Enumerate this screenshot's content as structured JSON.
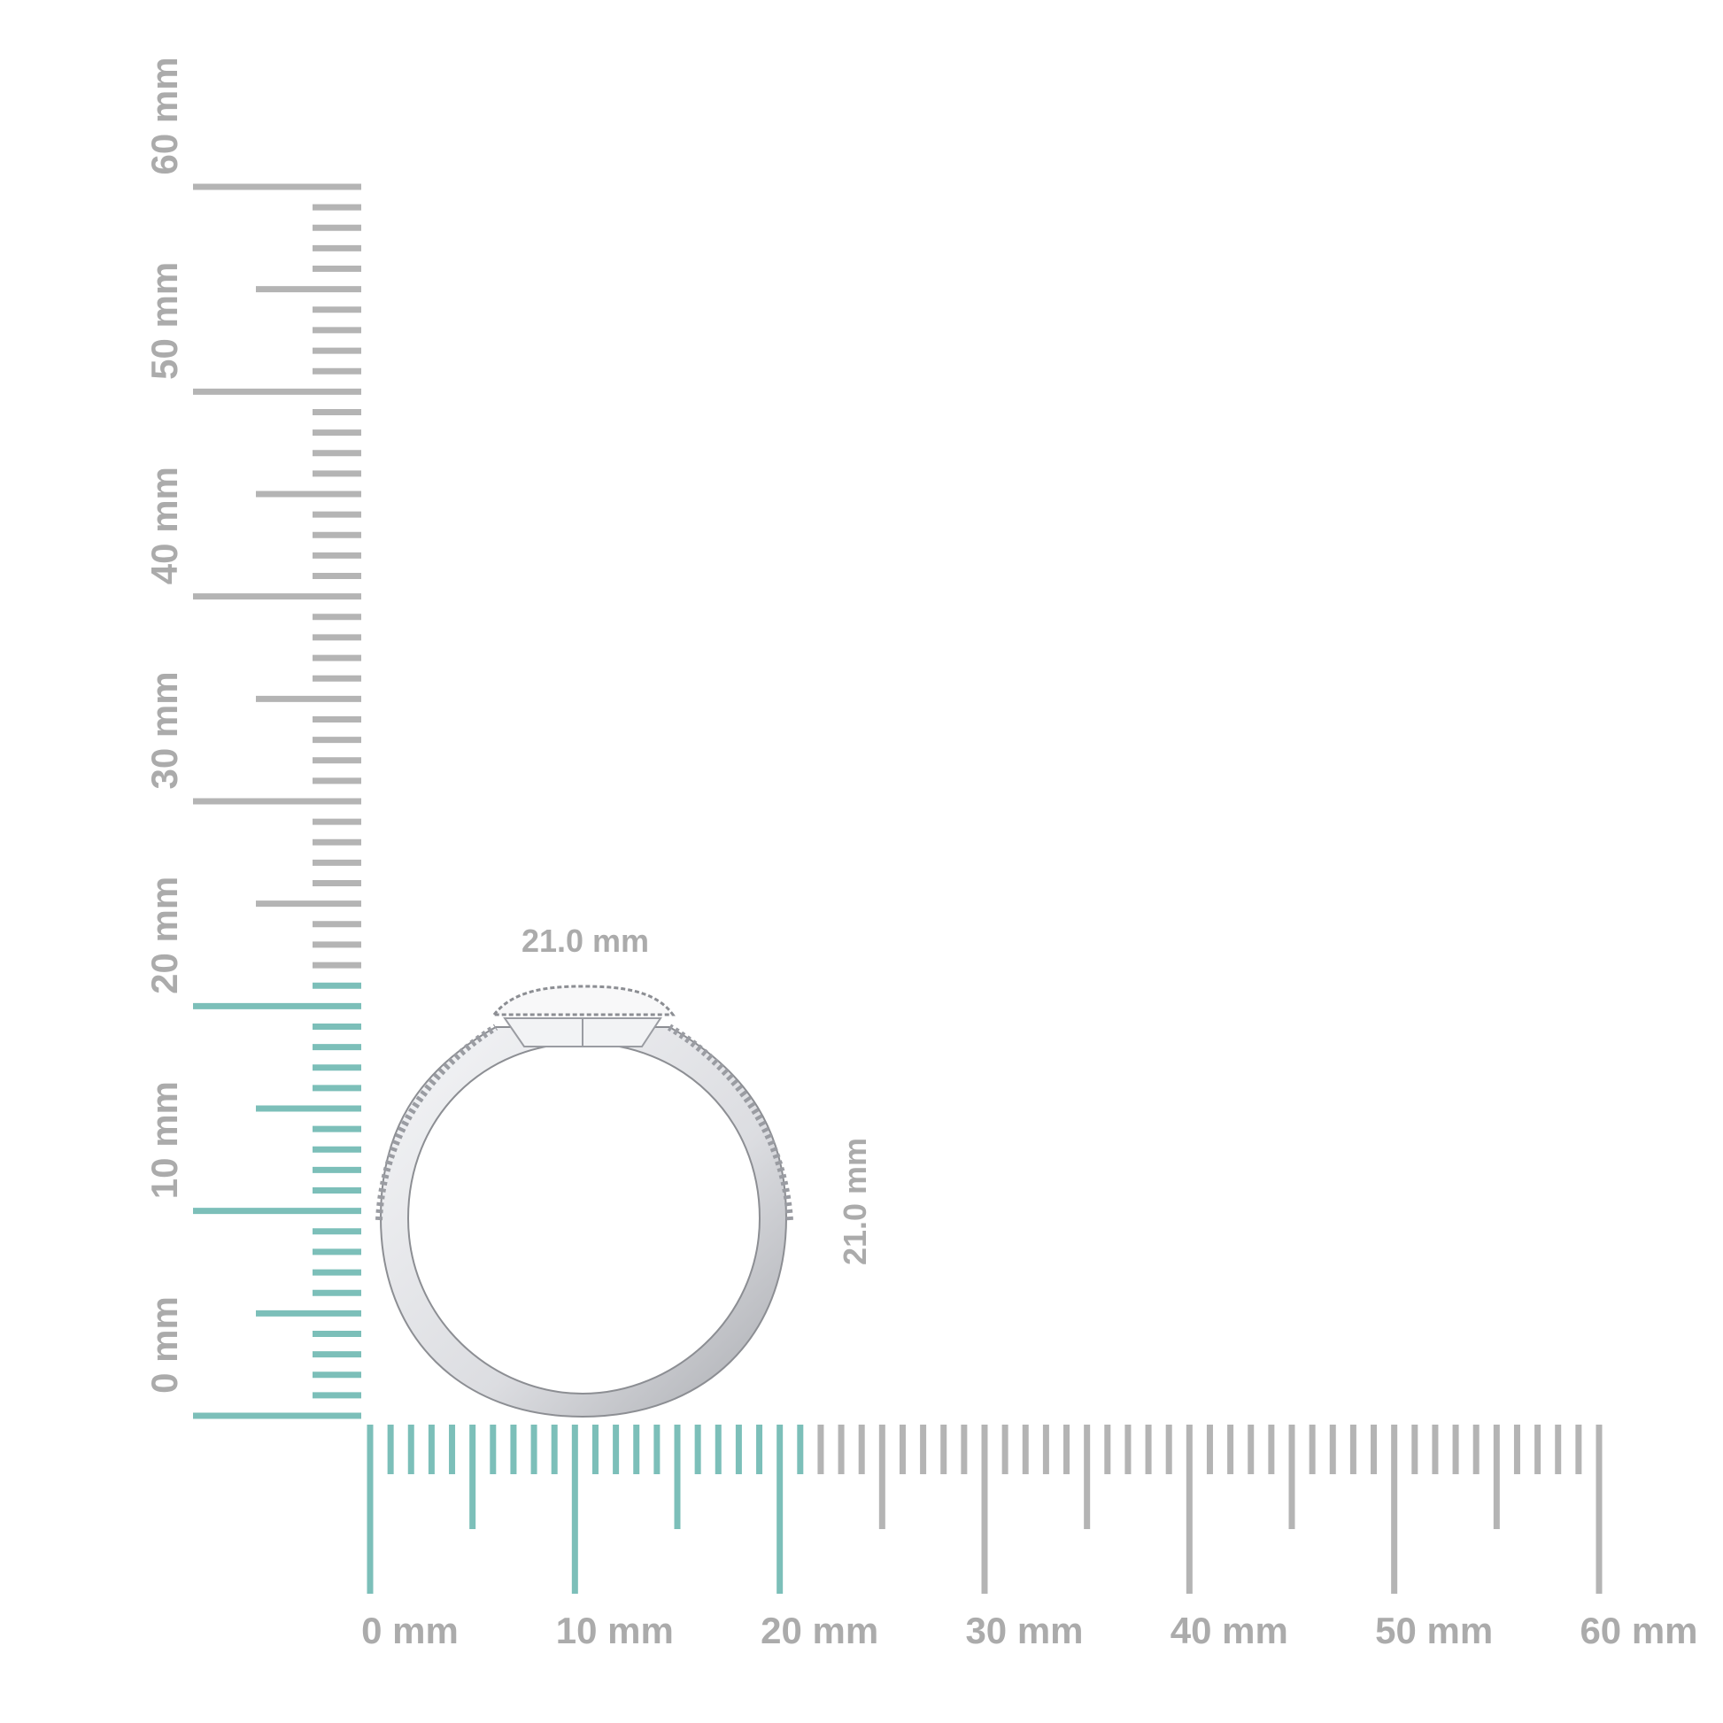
{
  "scale": {
    "unit": "mm",
    "range": [
      0,
      60
    ],
    "highlight_to_mm": 21,
    "highlight_color": "#7cbfb9",
    "tick_color": "#b4b4b4",
    "label_color": "#ababab",
    "horizontal_labels": [
      "0 mm",
      "10 mm",
      "20 mm",
      "30 mm",
      "40 mm",
      "50 mm",
      "60 mm"
    ],
    "vertical_labels": [
      "0 mm",
      "10 mm",
      "20 mm",
      "30 mm",
      "40 mm",
      "50 mm",
      "60 mm"
    ]
  },
  "product": {
    "width_label": "21.0 mm",
    "height_label": "21.0 mm",
    "metal_color": "#e6e7ea"
  }
}
